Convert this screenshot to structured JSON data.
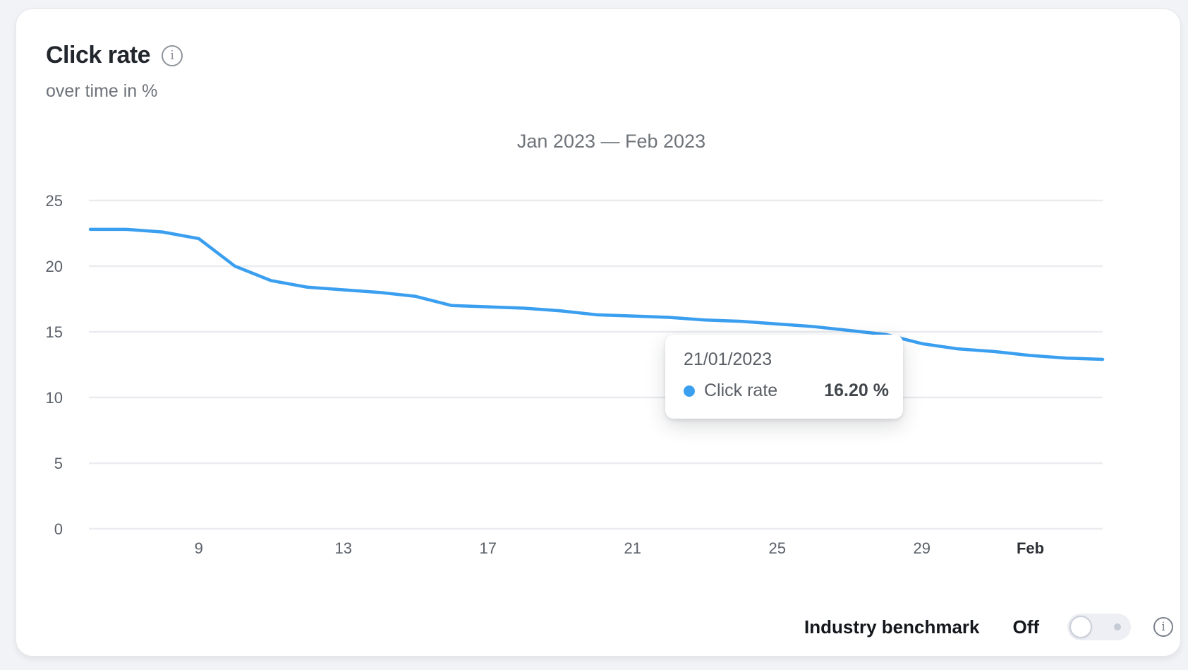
{
  "card": {
    "title": "Click rate",
    "subtitle": "over time in %"
  },
  "chart_data": {
    "type": "line",
    "title": "Jan 2023 — Feb 2023",
    "xlabel": "",
    "ylabel": "over time in %",
    "ylim": [
      0,
      25
    ],
    "y_ticks": [
      0,
      5,
      10,
      15,
      20,
      25
    ],
    "grid": true,
    "legend_position": "none",
    "x": [
      "06/01/2023",
      "07/01/2023",
      "08/01/2023",
      "09/01/2023",
      "10/01/2023",
      "11/01/2023",
      "12/01/2023",
      "13/01/2023",
      "14/01/2023",
      "15/01/2023",
      "16/01/2023",
      "17/01/2023",
      "18/01/2023",
      "19/01/2023",
      "20/01/2023",
      "21/01/2023",
      "22/01/2023",
      "23/01/2023",
      "24/01/2023",
      "25/01/2023",
      "26/01/2023",
      "27/01/2023",
      "28/01/2023",
      "29/01/2023",
      "30/01/2023",
      "31/01/2023",
      "01/02/2023",
      "02/02/2023",
      "03/02/2023"
    ],
    "x_ticks": [
      {
        "label": "9",
        "at": "09/01/2023",
        "bold": false
      },
      {
        "label": "13",
        "at": "13/01/2023",
        "bold": false
      },
      {
        "label": "17",
        "at": "17/01/2023",
        "bold": false
      },
      {
        "label": "21",
        "at": "21/01/2023",
        "bold": false
      },
      {
        "label": "25",
        "at": "25/01/2023",
        "bold": false
      },
      {
        "label": "29",
        "at": "29/01/2023",
        "bold": false
      },
      {
        "label": "Feb",
        "at": "01/02/2023",
        "bold": true
      }
    ],
    "series": [
      {
        "name": "Click rate",
        "color": "#3b9ff0",
        "values": [
          22.8,
          22.8,
          22.6,
          22.1,
          20.0,
          18.9,
          18.4,
          18.2,
          18.0,
          17.7,
          17.0,
          16.9,
          16.8,
          16.6,
          16.3,
          16.2,
          16.1,
          15.9,
          15.8,
          15.6,
          15.4,
          15.1,
          14.8,
          14.1,
          13.7,
          13.5,
          13.2,
          13.0,
          12.9
        ]
      }
    ]
  },
  "tooltip": {
    "date": "21/01/2023",
    "series_label": "Click rate",
    "value": "16.20 %"
  },
  "footer": {
    "benchmark_label": "Industry benchmark",
    "toggle_state": "Off"
  },
  "icons": {
    "title_info": "info-icon",
    "benchmark_info": "info-icon",
    "info_glyph": "i"
  },
  "colors": {
    "accent_blue": "#3b9ff0",
    "card_bg": "#ffffff",
    "page_bg": "#f1f3f6",
    "gridline": "#eaecef",
    "axis_text": "#5a6069",
    "title_text": "#22262d",
    "muted_text": "#6d727a"
  }
}
